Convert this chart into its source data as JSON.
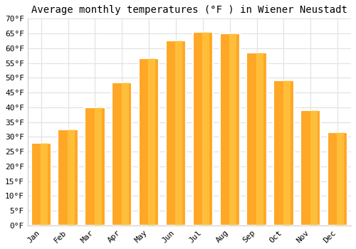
{
  "title": "Average monthly temperatures (°F ) in Wiener Neustadt",
  "months": [
    "Jan",
    "Feb",
    "Mar",
    "Apr",
    "May",
    "Jun",
    "Jul",
    "Aug",
    "Sep",
    "Oct",
    "Nov",
    "Dec"
  ],
  "values": [
    28,
    32.5,
    40,
    48.5,
    56.5,
    62.5,
    65.5,
    65,
    58.5,
    49,
    39,
    31.5
  ],
  "bar_color": "#FFA726",
  "bar_edge_color": "#FFD180",
  "ylim": [
    0,
    70
  ],
  "yticks": [
    0,
    5,
    10,
    15,
    20,
    25,
    30,
    35,
    40,
    45,
    50,
    55,
    60,
    65,
    70
  ],
  "background_color": "#ffffff",
  "grid_color": "#e0e0e0",
  "title_fontsize": 10,
  "tick_fontsize": 8,
  "font_family": "monospace"
}
